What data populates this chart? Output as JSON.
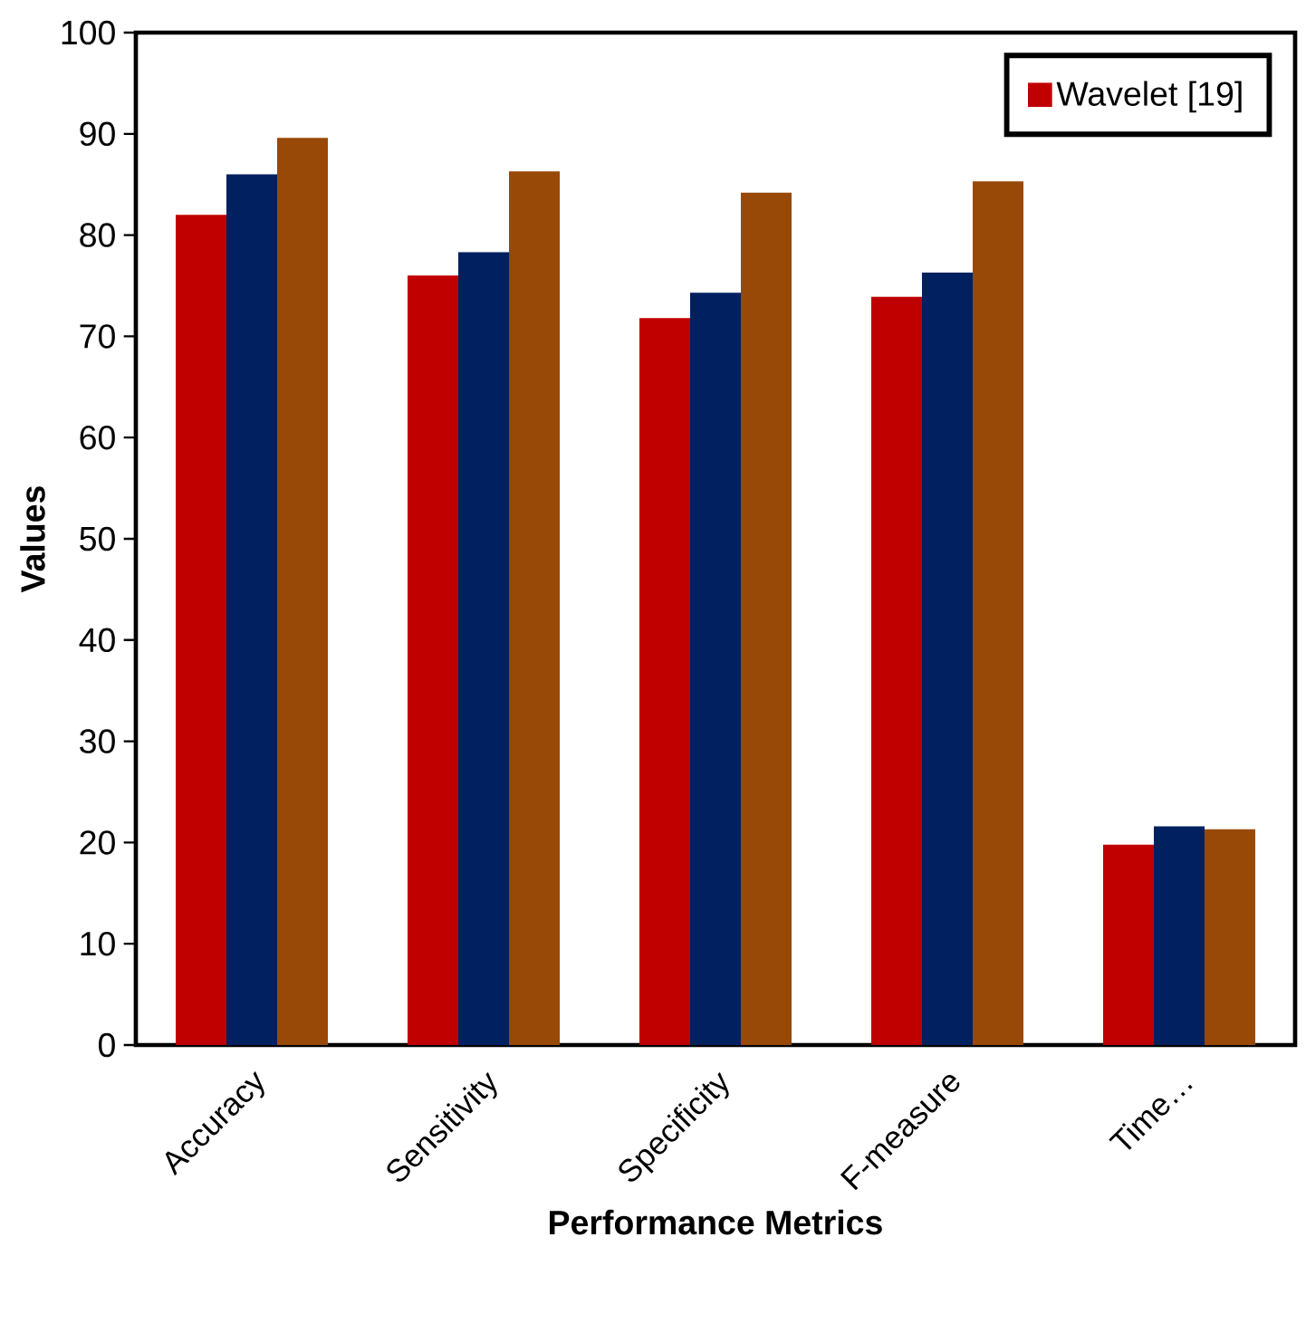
{
  "chart_data": {
    "type": "bar",
    "xlabel": "Performance Metrics",
    "ylabel": "Values",
    "categories": [
      "Accuracy",
      "Sensitivity",
      "Specificity",
      "F-measure",
      "Time…"
    ],
    "series": [
      {
        "name": "Wavelet [19]",
        "color": "#c00000",
        "values": [
          82,
          76,
          71.8,
          73.9,
          19.8
        ]
      },
      {
        "color": "#002060",
        "values": [
          86,
          78.3,
          74.3,
          76.3,
          21.6
        ]
      },
      {
        "color": "#984807",
        "values": [
          89.6,
          86.3,
          84.2,
          85.3,
          21.3
        ]
      }
    ],
    "ylim": [
      0,
      100
    ],
    "yticks": [
      0,
      10,
      20,
      30,
      40,
      50,
      60,
      70,
      80,
      90,
      100
    ],
    "grid": false,
    "legend": "top right"
  }
}
